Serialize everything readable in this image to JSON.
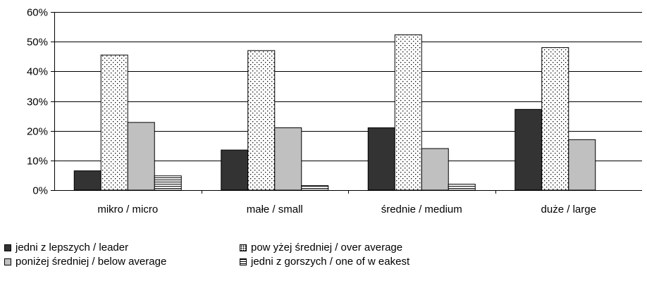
{
  "chart_data": {
    "type": "bar",
    "title": "",
    "xlabel": "",
    "ylabel": "",
    "ylim": [
      0,
      60
    ],
    "y_ticks": [
      "0%",
      "10%",
      "20%",
      "30%",
      "40%",
      "50%",
      "60%"
    ],
    "y_tick_values": [
      0,
      10,
      20,
      30,
      40,
      50,
      60
    ],
    "categories": [
      "mikro / micro",
      "małe / small",
      "średnie / medium",
      "duże / large"
    ],
    "series": [
      {
        "name": "jedni z lepszych / leader",
        "values": [
          6.5,
          13.5,
          21,
          27.2
        ],
        "color": "#333333",
        "pattern": "solid"
      },
      {
        "name": "pow yżej średniej / over average",
        "values": [
          45.5,
          47,
          52.3,
          48
        ],
        "color": "#ffffff",
        "pattern": "dots"
      },
      {
        "name": "poniżej średniej / below average",
        "values": [
          22.8,
          21,
          14,
          17
        ],
        "color": "#c0c0c0",
        "pattern": "solid"
      },
      {
        "name": "jedni z gorszych / one of w eakest",
        "values": [
          4.8,
          1.5,
          2,
          0
        ],
        "color": "#ffffff",
        "pattern": "hlines"
      }
    ],
    "grid": true,
    "legend_position": "bottom"
  }
}
